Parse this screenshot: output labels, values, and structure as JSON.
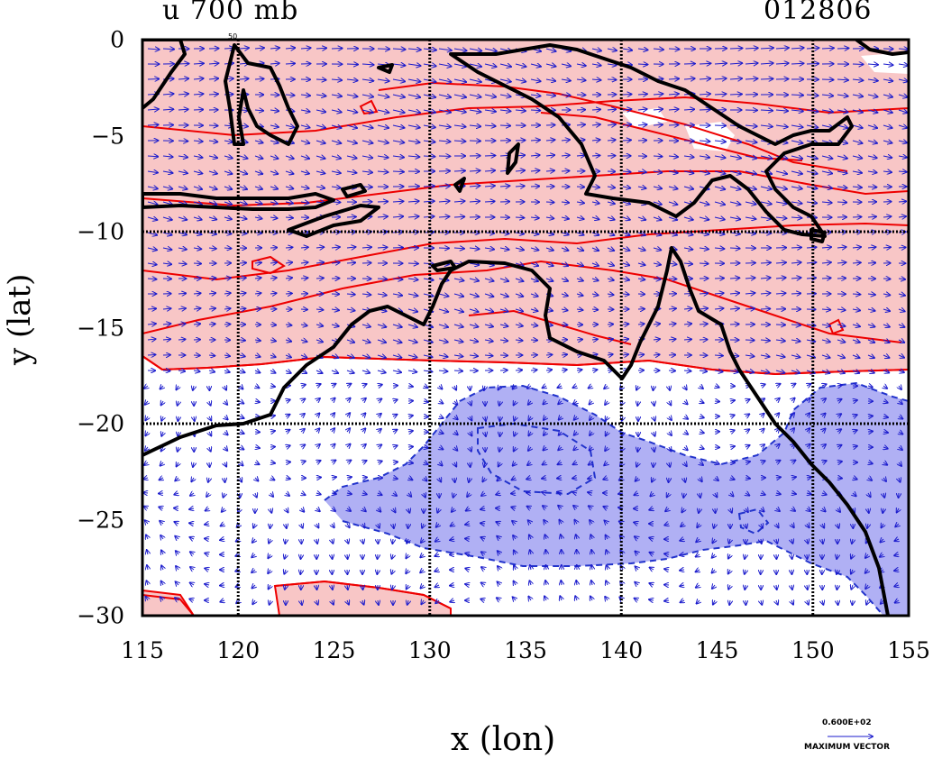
{
  "title_left": "u 700 mb",
  "title_right": "012806",
  "xlabel": "x (lon)",
  "ylabel": "y (lat)",
  "x_ticks": [
    "115",
    "120",
    "125",
    "130",
    "135",
    "140",
    "145",
    "150",
    "155"
  ],
  "y_ticks": [
    "0",
    "−5",
    "−10",
    "−15",
    "−20",
    "−25",
    "−30"
  ],
  "vector_ref": {
    "value": "0.600E+02",
    "label": "MAXIMUM VECTOR"
  },
  "contour_label": "50",
  "colors": {
    "positive_fill": "#f8c6c6",
    "positive_line": "#ee0000",
    "negative_fill": "#b0b0f4",
    "negative_line": "#2233cc",
    "vector": "#1a1acc",
    "coast": "#000000"
  },
  "chart_data": {
    "type": "heatmap",
    "title": "u 700 mb",
    "xlabel": "x (lon)",
    "ylabel": "y (lat)",
    "xlim": [
      115,
      155
    ],
    "ylim": [
      -30,
      0
    ],
    "grid": true,
    "grid_lines": {
      "lon": [
        120,
        130,
        140,
        150
      ],
      "lat": [
        -10,
        -20
      ]
    },
    "regions": [
      {
        "sign": "positive",
        "description_lat_range": [
          -18,
          0
        ]
      },
      {
        "sign": "negative",
        "description_lat_range": [
          -29,
          -18
        ]
      }
    ]
  }
}
